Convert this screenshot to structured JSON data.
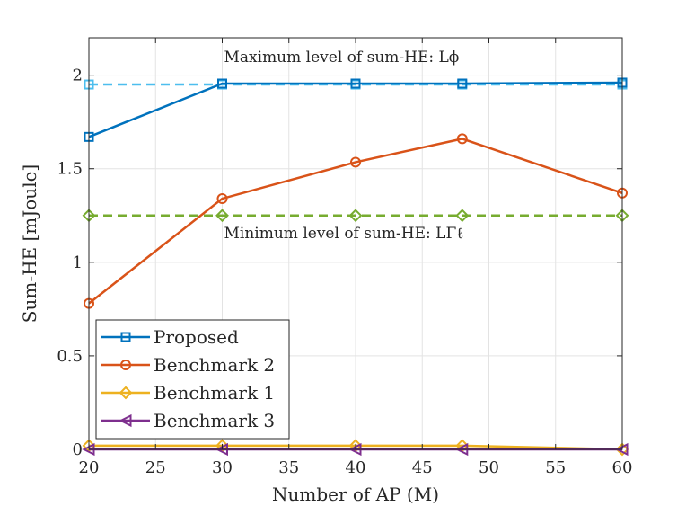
{
  "chart_data": {
    "type": "line",
    "xlabel": "Number of AP (M)",
    "ylabel": "Sum-HE [mJoule]",
    "xlim": [
      20,
      60
    ],
    "ylim": [
      0,
      2.2
    ],
    "xticks": [
      20,
      25,
      30,
      35,
      40,
      45,
      50,
      55,
      60
    ],
    "yticks": [
      0,
      0.5,
      1,
      1.5,
      2
    ],
    "ytick_labels": [
      "0",
      "0.5",
      "1",
      "1.5",
      "2"
    ],
    "grid": true,
    "legend_position": "bottom-left",
    "series": [
      {
        "name": "Proposed",
        "color": "#0072BD",
        "marker": "square",
        "style": "solid",
        "x": [
          20,
          30,
          40,
          48,
          60
        ],
        "y": [
          1.67,
          1.955,
          1.955,
          1.955,
          1.96
        ]
      },
      {
        "name": "Benchmark 2",
        "color": "#D95319",
        "marker": "circle",
        "style": "solid",
        "x": [
          20,
          30,
          40,
          48,
          60
        ],
        "y": [
          0.78,
          1.34,
          1.535,
          1.66,
          1.37
        ]
      },
      {
        "name": "Benchmark 1",
        "color": "#EDB120",
        "marker": "diamond",
        "style": "solid",
        "x": [
          20,
          30,
          40,
          48,
          60
        ],
        "y": [
          0.02,
          0.02,
          0.02,
          0.02,
          0.0
        ]
      },
      {
        "name": "Benchmark 3",
        "color": "#7E2F8E",
        "marker": "triangle-left",
        "style": "solid",
        "x": [
          20,
          30,
          40,
          48,
          60
        ],
        "y": [
          0.0,
          0.0,
          0.0,
          0.0,
          0.0
        ]
      }
    ],
    "reference_lines": [
      {
        "name": "Maximum level",
        "color": "#4DBEEE",
        "marker": "square",
        "style": "dashed",
        "x": [
          20,
          30,
          40,
          48,
          60
        ],
        "y": 1.95
      },
      {
        "name": "Minimum level",
        "color": "#77AC30",
        "marker": "diamond",
        "style": "dashed",
        "x": [
          20,
          30,
          40,
          48,
          60
        ],
        "y": 1.25
      }
    ],
    "annotations": [
      {
        "text": "Maximum level of sum-HE: Lϕ",
        "x": 30,
        "y": 2.07
      },
      {
        "text": "Minimum level of sum-HE: LΓℓ",
        "x": 30,
        "y": 1.13
      }
    ]
  }
}
